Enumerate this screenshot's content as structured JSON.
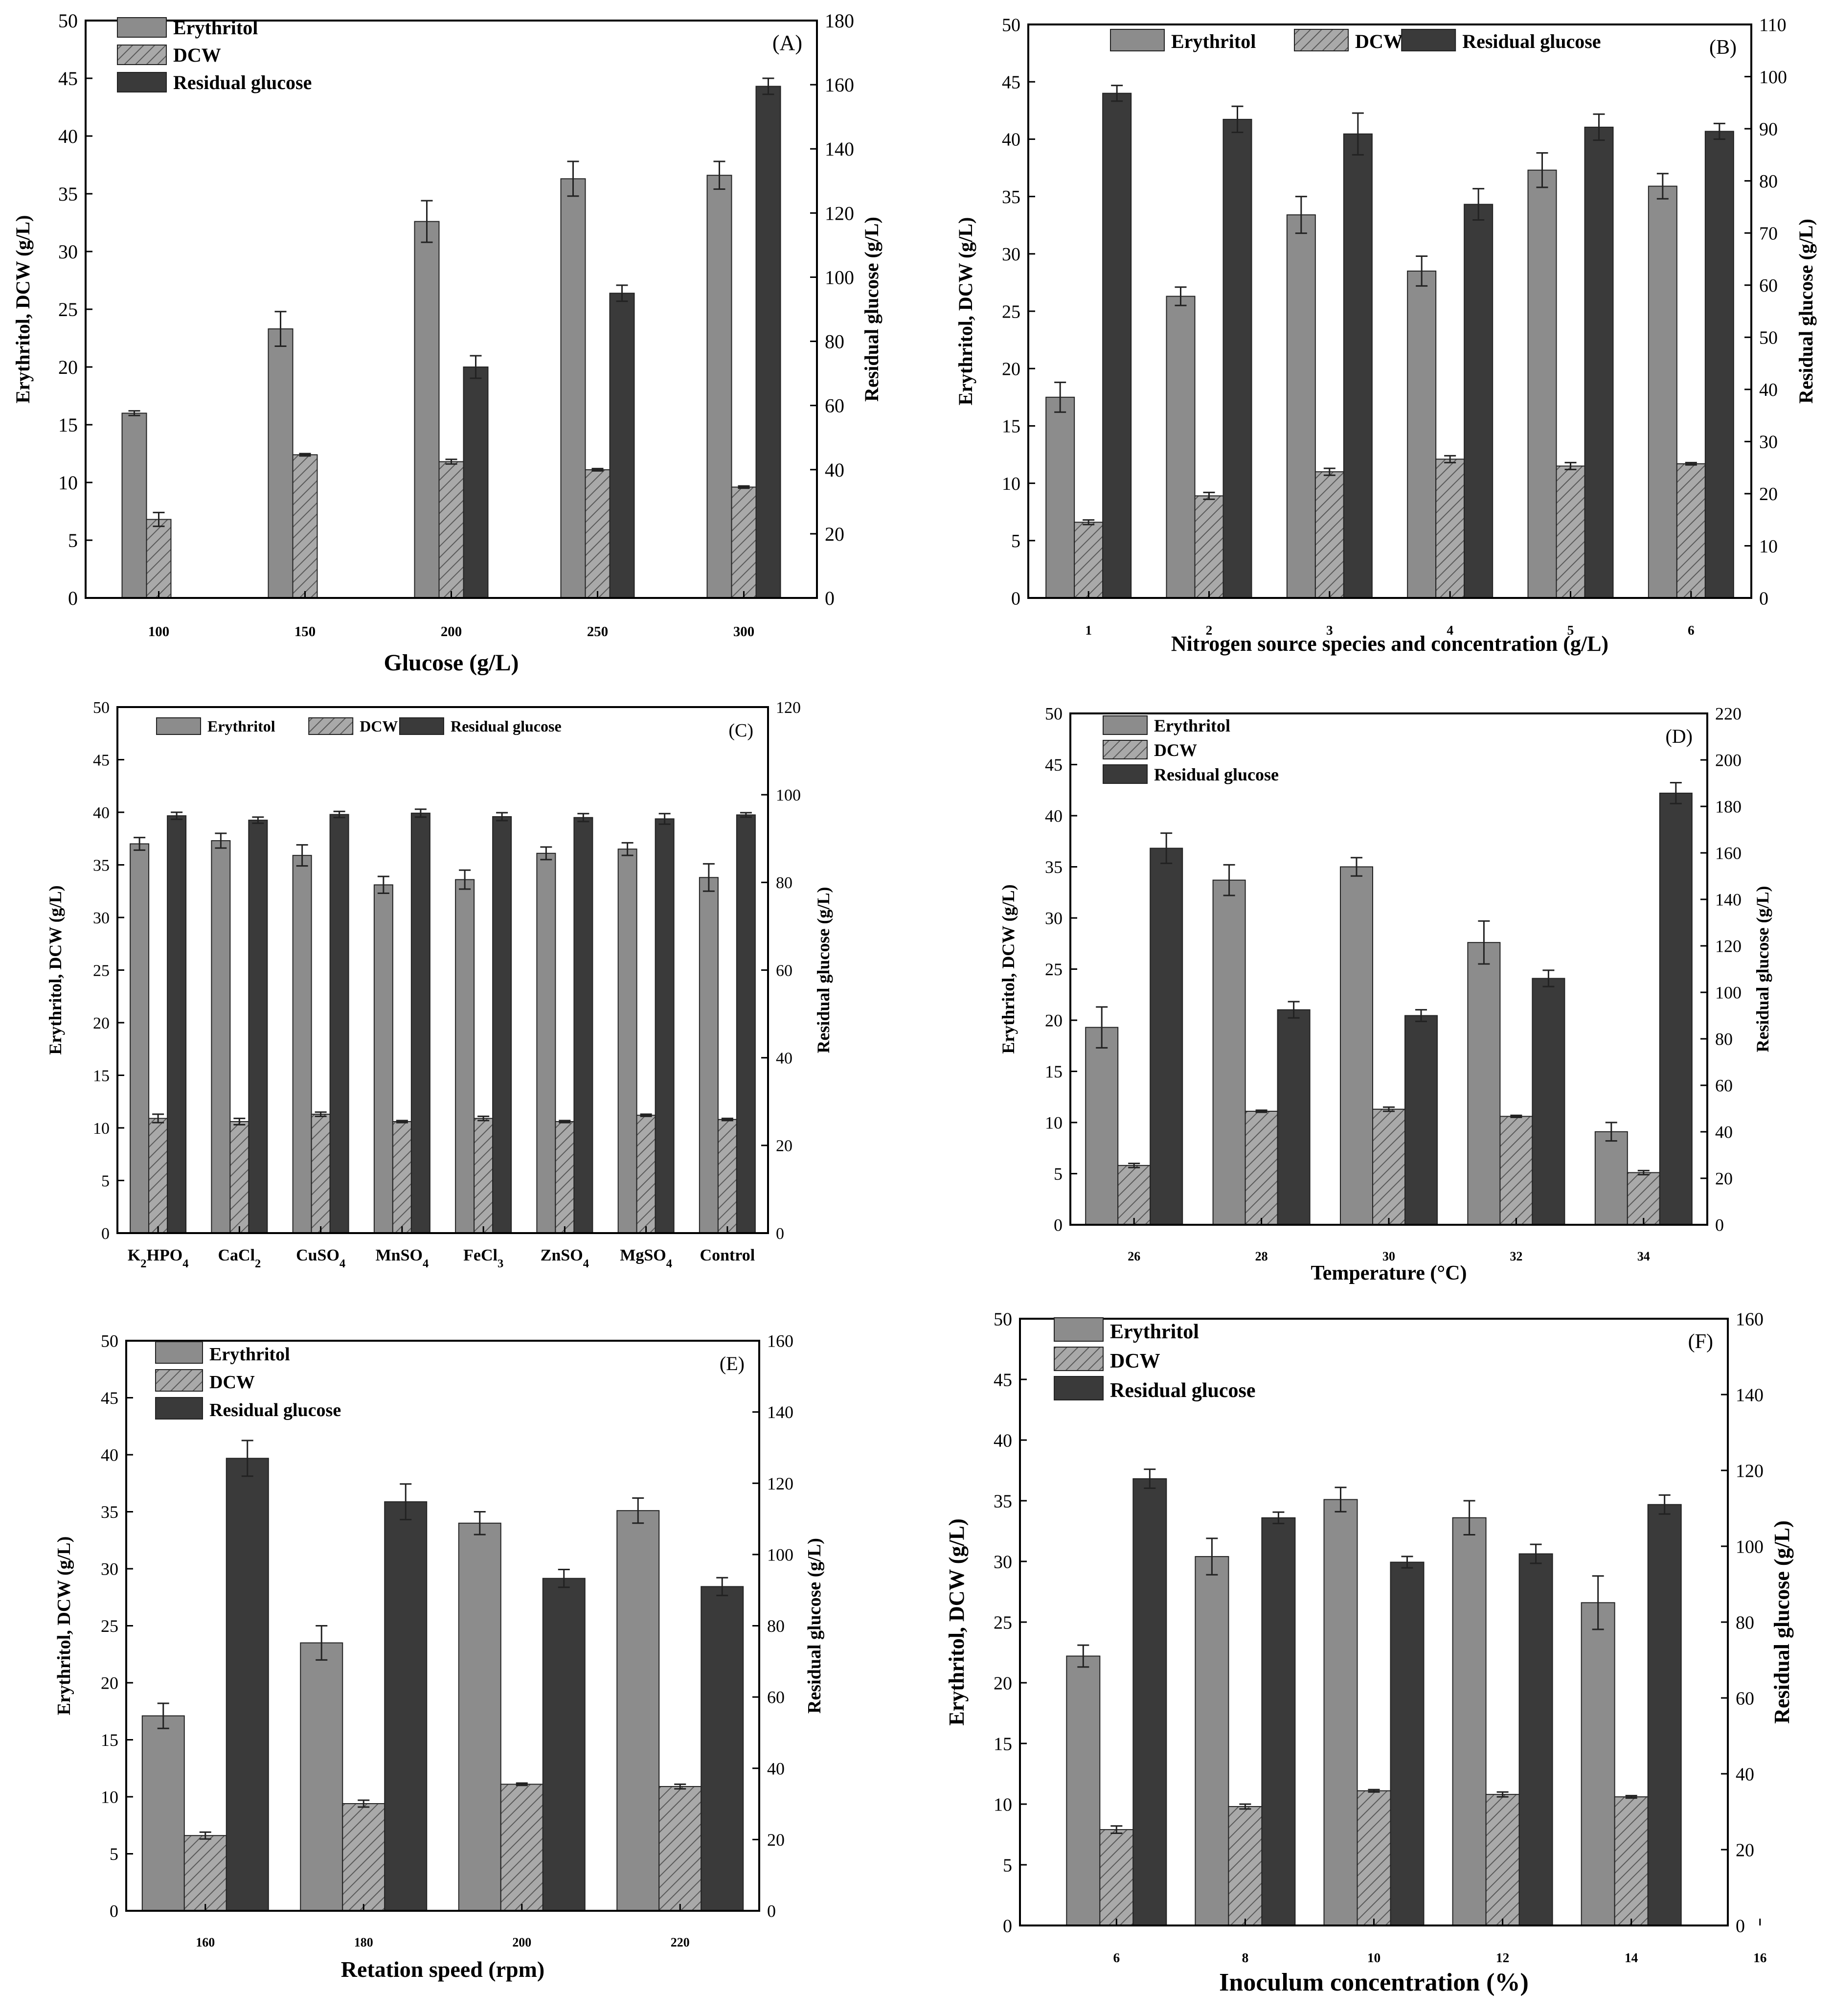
{
  "legend": {
    "erythritol": "Erythritol",
    "dcw": "DCW",
    "glucose": "Residual glucose"
  },
  "colors": {
    "erythritol": "#8c8c8c",
    "dcw": "#a9a9a9",
    "glucose": "#3a3a3a",
    "hatch": "#595959",
    "axis": "#000000"
  },
  "chart_data": [
    {
      "type": "bar",
      "panel": "(A)",
      "xlabel": "Glucose  (g/L)",
      "ylabel": "Erythritol, DCW (g/L)",
      "ylabel_right": "Residual glucose (g/L)",
      "categories": [
        "100",
        "150",
        "200",
        "250",
        "300"
      ],
      "ylim": [
        0,
        50
      ],
      "ylim_right": [
        0,
        180
      ],
      "yticks": [
        0,
        5,
        10,
        15,
        20,
        25,
        30,
        35,
        40,
        45,
        50
      ],
      "yticks_right": [
        0,
        20,
        40,
        60,
        80,
        100,
        120,
        140,
        160,
        180
      ],
      "series": [
        {
          "name": "Erythritol",
          "axis": "left",
          "values": [
            16.0,
            23.3,
            32.6,
            36.3,
            36.6
          ],
          "errors": [
            0.2,
            1.5,
            1.8,
            1.5,
            1.2
          ]
        },
        {
          "name": "DCW",
          "axis": "left",
          "values": [
            6.8,
            12.4,
            11.8,
            11.1,
            9.6
          ],
          "errors": [
            0.6,
            0.1,
            0.2,
            0.1,
            0.1
          ]
        },
        {
          "name": "Residual glucose",
          "axis": "right",
          "values": [
            0,
            0,
            72,
            95,
            159.5
          ],
          "errors": [
            0,
            0,
            3.5,
            2.5,
            2.5
          ]
        }
      ],
      "legend_size": "large"
    },
    {
      "type": "bar",
      "panel": "(B)",
      "xlabel": "Nitrogen source species and concentration  (g/L)",
      "ylabel": "Erythritol, DCW (g/L)",
      "ylabel_right": "Residual glucose (g/L)",
      "categories": [
        "1",
        "2",
        "3",
        "4",
        "5",
        "6"
      ],
      "ylim": [
        0,
        50
      ],
      "ylim_right": [
        0,
        110
      ],
      "yticks": [
        0,
        5,
        10,
        15,
        20,
        25,
        30,
        35,
        40,
        45,
        50
      ],
      "yticks_right": [
        0,
        10,
        20,
        30,
        40,
        50,
        60,
        70,
        80,
        90,
        100,
        110
      ],
      "series": [
        {
          "name": "Erythritol",
          "axis": "left",
          "values": [
            17.5,
            26.3,
            33.4,
            28.5,
            37.3,
            35.9
          ],
          "errors": [
            1.3,
            0.8,
            1.6,
            1.3,
            1.5,
            1.1
          ]
        },
        {
          "name": "DCW",
          "axis": "left",
          "values": [
            6.6,
            8.9,
            11.0,
            12.1,
            11.5,
            11.7
          ],
          "errors": [
            0.2,
            0.3,
            0.3,
            0.3,
            0.3,
            0.1
          ]
        },
        {
          "name": "Residual glucose",
          "axis": "right",
          "values": [
            96.8,
            91.8,
            89.0,
            75.5,
            90.3,
            89.5
          ],
          "errors": [
            1.5,
            2.5,
            4.0,
            3.0,
            2.5,
            1.5
          ]
        }
      ],
      "legend_size": "large"
    },
    {
      "type": "bar",
      "panel": "(C)",
      "xlabel": "",
      "ylabel": "Erythritol, DCW (g/L)",
      "ylabel_right": "Residual glucose (g/L)",
      "categories": [
        "K2HPO4",
        "CaCl2",
        "CuSO4",
        "MnSO4",
        "FeCl3",
        "ZnSO4",
        "MgSO4",
        "Control"
      ],
      "ylim": [
        0,
        50
      ],
      "ylim_right": [
        0,
        120
      ],
      "yticks": [
        0,
        5,
        10,
        15,
        20,
        25,
        30,
        35,
        40,
        45,
        50
      ],
      "yticks_right": [
        0,
        20,
        40,
        60,
        80,
        100,
        120
      ],
      "series": [
        {
          "name": "Erythritol",
          "axis": "left",
          "values": [
            37.0,
            37.3,
            35.9,
            33.1,
            33.6,
            36.1,
            36.5,
            33.8
          ],
          "errors": [
            0.6,
            0.7,
            1.0,
            0.8,
            0.9,
            0.6,
            0.6,
            1.3
          ]
        },
        {
          "name": "DCW",
          "axis": "left",
          "values": [
            10.9,
            10.6,
            11.3,
            10.6,
            10.9,
            10.6,
            11.2,
            10.8
          ],
          "errors": [
            0.4,
            0.3,
            0.2,
            0.1,
            0.2,
            0.1,
            0.1,
            0.1
          ]
        },
        {
          "name": "Residual glucose",
          "axis": "right",
          "values": [
            95.2,
            94.2,
            95.5,
            95.8,
            95.0,
            94.8,
            94.5,
            95.4
          ],
          "errors": [
            0.8,
            0.7,
            0.7,
            0.9,
            0.9,
            0.9,
            1.2,
            0.5
          ]
        }
      ],
      "legend_size": "small"
    },
    {
      "type": "bar",
      "panel": "(D)",
      "xlabel": "Temperature  (°C)",
      "ylabel": "Erythritol, DCW (g/L)",
      "ylabel_right": "Residual glucose (g/L)",
      "categories": [
        "26",
        "28",
        "30",
        "32",
        "34"
      ],
      "ylim": [
        0,
        50
      ],
      "ylim_right": [
        0,
        220
      ],
      "yticks": [
        0,
        5,
        10,
        15,
        20,
        25,
        30,
        35,
        40,
        45,
        50
      ],
      "yticks_right": [
        0,
        20,
        40,
        60,
        80,
        100,
        120,
        140,
        160,
        180,
        200,
        220
      ],
      "series": [
        {
          "name": "Erythritol",
          "axis": "left",
          "values": [
            19.3,
            33.7,
            35.0,
            27.6,
            9.1
          ],
          "errors": [
            2.0,
            1.5,
            0.9,
            2.1,
            0.9
          ]
        },
        {
          "name": "DCW",
          "axis": "left",
          "values": [
            5.8,
            11.1,
            11.3,
            10.6,
            5.1
          ],
          "errors": [
            0.2,
            0.1,
            0.2,
            0.1,
            0.2
          ]
        },
        {
          "name": "Residual glucose",
          "axis": "right",
          "values": [
            162.0,
            92.5,
            90.0,
            106.0,
            185.7
          ],
          "errors": [
            6.5,
            3.5,
            2.5,
            3.5,
            4.5
          ]
        }
      ],
      "legend_size": "small"
    },
    {
      "type": "bar",
      "panel": "(E)",
      "xlabel": "Retation speed  (rpm)",
      "ylabel": "Erythritol, DCW (g/L)",
      "ylabel_right": "Residual glucose (g/L)",
      "categories": [
        "160",
        "180",
        "200",
        "220"
      ],
      "ylim": [
        0,
        50
      ],
      "ylim_right": [
        0,
        160
      ],
      "yticks": [
        0,
        5,
        10,
        15,
        20,
        25,
        30,
        35,
        40,
        45,
        50
      ],
      "yticks_right": [
        0,
        20,
        40,
        60,
        80,
        100,
        120,
        140,
        160
      ],
      "series": [
        {
          "name": "Erythritol",
          "axis": "left",
          "values": [
            17.1,
            23.5,
            34.0,
            35.1
          ],
          "errors": [
            1.1,
            1.5,
            1.0,
            1.1
          ]
        },
        {
          "name": "DCW",
          "axis": "left",
          "values": [
            6.6,
            9.4,
            11.1,
            10.9
          ],
          "errors": [
            0.3,
            0.3,
            0.1,
            0.2
          ]
        },
        {
          "name": "Residual glucose",
          "axis": "right",
          "values": [
            127.0,
            114.8,
            93.3,
            91.0
          ],
          "errors": [
            5.0,
            5.0,
            2.5,
            2.5
          ]
        }
      ],
      "legend_size": "small"
    },
    {
      "type": "bar",
      "panel": "(F)",
      "xlabel": "Inoculum concentration  (%)",
      "ylabel": "Erythritol, DCW (g/L)",
      "ylabel_right": "Residual glucose (g/L)",
      "categories": [
        "6",
        "8",
        "10",
        "12",
        "14"
      ],
      "extra_tick": "16",
      "ylim": [
        0,
        50
      ],
      "ylim_right": [
        0,
        160
      ],
      "yticks": [
        0,
        5,
        10,
        15,
        20,
        25,
        30,
        35,
        40,
        45,
        50
      ],
      "yticks_right": [
        0,
        20,
        40,
        60,
        80,
        100,
        120,
        140,
        160
      ],
      "series": [
        {
          "name": "Erythritol",
          "axis": "left",
          "values": [
            22.2,
            30.4,
            35.1,
            33.6,
            26.6
          ],
          "errors": [
            0.9,
            1.5,
            1.0,
            1.4,
            2.2
          ]
        },
        {
          "name": "DCW",
          "axis": "left",
          "values": [
            7.9,
            9.8,
            11.1,
            10.8,
            10.6
          ],
          "errors": [
            0.3,
            0.2,
            0.1,
            0.2,
            0.1
          ]
        },
        {
          "name": "Residual glucose",
          "axis": "right",
          "values": [
            117.8,
            107.5,
            95.8,
            98.0,
            111.0
          ],
          "errors": [
            2.5,
            1.5,
            1.5,
            2.5,
            2.5
          ]
        }
      ],
      "legend_size": "large"
    }
  ]
}
